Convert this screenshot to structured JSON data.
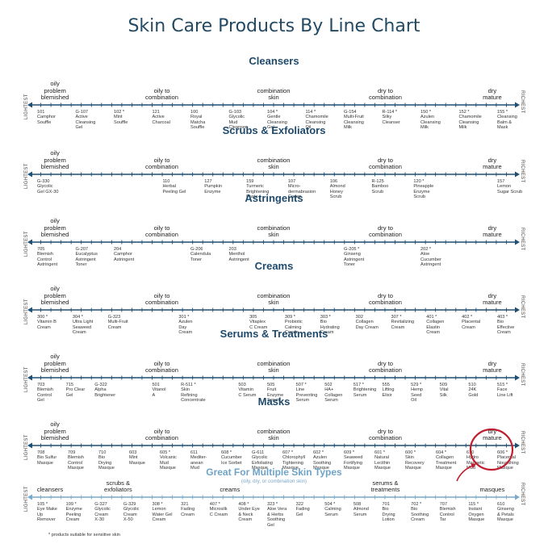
{
  "title": "Skin Care Products By Line Chart",
  "axis_left": "LIGHTEST",
  "axis_right": "RICHEST",
  "sections": [
    {
      "title": "Cleansers",
      "zones": [
        {
          "text": "oily\nproblem\nblemished",
          "pos": 0.05
        },
        {
          "text": "oily to\ncombination",
          "pos": 0.27
        },
        {
          "text": "combination\nskin",
          "pos": 0.5
        },
        {
          "text": "dry to\ncombination",
          "pos": 0.73
        },
        {
          "text": "dry\nmature",
          "pos": 0.95
        }
      ],
      "products": [
        {
          "text": "101\nCamphor\nSouffle"
        },
        {
          "text": "G-107\nActive\nCleansing\nGel"
        },
        {
          "text": "102 *\nMint\nSouffle"
        },
        {
          "text": "121\nActive\nCharcoal"
        },
        {
          "text": "100\nRoyal\nMatcha\nSouffle"
        },
        {
          "text": "G-103\nGlycolic\nMud\nCleanser"
        },
        {
          "text": "104 *\nGentle\nCleansing\nGel"
        },
        {
          "text": "114 *\nChamomile\nCleansing\nOil"
        },
        {
          "text": "G-154\nMulti-Fruit\nCleansing\nMilk"
        },
        {
          "text": "R-114 *\nSilky\nCleanser"
        },
        {
          "text": "150 *\nAzulen\nCleansing\nMilk"
        },
        {
          "text": "152 *\nChamomile\nCleansing\nMilk"
        },
        {
          "text": "155 *\nCleansing\nBalm &\nMask"
        }
      ]
    },
    {
      "title": "Scrubs & Exfoliators",
      "zones": [
        {
          "text": "oily\nproblem\nblemished",
          "pos": 0.05
        },
        {
          "text": "oily to\ncombination",
          "pos": 0.27
        },
        {
          "text": "combination\nskin",
          "pos": 0.5
        },
        {
          "text": "dry to\ncombination",
          "pos": 0.73
        },
        {
          "text": "dry\nmature",
          "pos": 0.95
        }
      ],
      "products": [
        {
          "text": "G-330\nGlycolic\nGel GX-30"
        },
        {
          "text": ""
        },
        {
          "text": ""
        },
        {
          "text": "110\nHerbal\nPeeling Gel"
        },
        {
          "text": "127\nPumpkin\nEnzyme"
        },
        {
          "text": "159\nTurmeric\nBrightening\nPaste"
        },
        {
          "text": "107\nMicro-\ndermabrasion\nCream"
        },
        {
          "text": "106\nAlmond\nHoney\nScrub"
        },
        {
          "text": "R-125\nBamboo\nScrub"
        },
        {
          "text": "120 *\nPineapple\nEnzyme\nScrub"
        },
        {
          "text": ""
        },
        {
          "text": "157\nLemon\nSugar Scrub"
        }
      ]
    },
    {
      "title": "Astringents",
      "zones": [
        {
          "text": "oily\nproblem\nblemished",
          "pos": 0.05
        },
        {
          "text": "oily to\ncombination",
          "pos": 0.27
        },
        {
          "text": "combination\nskin",
          "pos": 0.5
        },
        {
          "text": "dry to\ncombination",
          "pos": 0.73
        },
        {
          "text": "dry\nmature",
          "pos": 0.95
        }
      ],
      "products": [
        {
          "text": "705\nBlemish\nControl\nAstringent"
        },
        {
          "text": "G-207\nEucalyptus\nAstringent\nToner"
        },
        {
          "text": "204\nCamphor\nAstringent"
        },
        {
          "text": ""
        },
        {
          "text": "G-206\nCalendula\nToner"
        },
        {
          "text": "203\nMenthol\nAstringent"
        },
        {
          "text": ""
        },
        {
          "text": ""
        },
        {
          "text": "G-205 *\nGinseng\nAstringent\nToner"
        },
        {
          "text": ""
        },
        {
          "text": "202 *\nAloe\nCucumber\nAstringent"
        },
        {
          "text": ""
        },
        {
          "text": ""
        }
      ]
    },
    {
      "title": "Creams",
      "zones": [
        {
          "text": "oily\nproblem\nblemished",
          "pos": 0.05
        },
        {
          "text": "oily to\ncombination",
          "pos": 0.27
        },
        {
          "text": "combination\nskin",
          "pos": 0.5
        },
        {
          "text": "dry to\ncombination",
          "pos": 0.73
        },
        {
          "text": "dry\nmature",
          "pos": 0.95
        }
      ],
      "products": [
        {
          "text": "300 *\nVitamin B\nCream"
        },
        {
          "text": "304 *\nUltra Light\nSeaweed\nCream"
        },
        {
          "text": "G-323\nMulti-Fruit\nCream"
        },
        {
          "text": ""
        },
        {
          "text": "301 *\nAzulen\nDay\nCream"
        },
        {
          "text": ""
        },
        {
          "text": "305\nVitaplex\nC Cream"
        },
        {
          "text": "309 *\nProbiotic\nCalming\nCream"
        },
        {
          "text": "303 *\nBio\nHydrating\nCream"
        },
        {
          "text": "302\nCollagen\nDay Cream"
        },
        {
          "text": "307 *\nRevitalizing\nCream"
        },
        {
          "text": "401 *\nCollagen\nElastin\nCream"
        },
        {
          "text": "402 *\nPlacental\nCream"
        },
        {
          "text": "403 *\nBio\nEffective\nCream"
        }
      ]
    },
    {
      "title": "Serums & Treatments",
      "zones": [
        {
          "text": "oily\nproblem\nblemished",
          "pos": 0.05
        },
        {
          "text": "oily to\ncombination",
          "pos": 0.27
        },
        {
          "text": "combination\nskin",
          "pos": 0.5
        },
        {
          "text": "dry to\ncombination",
          "pos": 0.73
        },
        {
          "text": "dry\nmature",
          "pos": 0.95
        }
      ],
      "products": [
        {
          "text": "703\nBlemish\nControl\nGel"
        },
        {
          "text": "715\nPro Clear\nGel"
        },
        {
          "text": "G-322\nAlpha\nBrightener"
        },
        {
          "text": ""
        },
        {
          "text": "501\nVitanol\nA"
        },
        {
          "text": "R-511 *\nSkin\nRefining\nConcentrate"
        },
        {
          "text": ""
        },
        {
          "text": "503\nVitamin\nC Serum"
        },
        {
          "text": "505\nFruit\nEnzyme\nSerum"
        },
        {
          "text": "507 *\nLine\nPreventing\nSerum"
        },
        {
          "text": "502\nHA+\nCollagen\nSerum"
        },
        {
          "text": "517 *\nBrightening\nSerum"
        },
        {
          "text": "555\nLifting\nElixir"
        },
        {
          "text": "529 *\nHemp\nSeed\nOil"
        },
        {
          "text": "509\nVital\nSilk"
        },
        {
          "text": "510\n24K\nGold"
        },
        {
          "text": "515 *\nFace\nLine Lift"
        }
      ]
    },
    {
      "title": "Masks",
      "zones": [
        {
          "text": "oily\nproblem\nblemished",
          "pos": 0.05
        },
        {
          "text": "oily to\ncombination",
          "pos": 0.27
        },
        {
          "text": "combination\nskin",
          "pos": 0.5
        },
        {
          "text": "dry to\ncombination",
          "pos": 0.73
        },
        {
          "text": "dry\nmature",
          "pos": 0.95
        }
      ],
      "products": [
        {
          "text": "708\nBio Sulfur\nMasque"
        },
        {
          "text": "709\nBlemish\nControl\nMasque"
        },
        {
          "text": "710\nBio\nDrying\nMasque"
        },
        {
          "text": "603\nMint\nMasque"
        },
        {
          "text": "605 *\nVolcanic\nMud\nMasque"
        },
        {
          "text": "611\nMediter-\nanean\nMud"
        },
        {
          "text": "608 *\nCucumber\nIce Sorbet"
        },
        {
          "text": "G-611\nGlycolic\nExfoliating\nMasque"
        },
        {
          "text": "607 *\nChlorophyll\nTightening\nMasque"
        },
        {
          "text": "602 *\nAzulen\nSoothing\nMasque"
        },
        {
          "text": "609 *\nSeaweed\nFortifying\nMasque"
        },
        {
          "text": "601 *\nNatural\nLecithin\nMasque"
        },
        {
          "text": "600 *\nSkin\nRecovery\nMasque"
        },
        {
          "text": "604 *\nCollagen\nTreatment\nMasque"
        },
        {
          "text": "610\nHydro\nMagnetic\nMud"
        },
        {
          "text": "606 *\nPlacental\nNourishing\nMasque"
        }
      ]
    }
  ],
  "multi": {
    "title": "Great For Multiple Skin Types",
    "subtitle": "(oily, dry, or combination skin)",
    "zones": [
      {
        "text": "cleansers",
        "pos": 0.04
      },
      {
        "text": "scrubs &\nexfoliators",
        "pos": 0.18
      },
      {
        "text": "creams",
        "pos": 0.41
      },
      {
        "text": "serums &\ntreatments",
        "pos": 0.73
      },
      {
        "text": "masques",
        "pos": 0.95
      }
    ],
    "products": [
      {
        "text": "105 *\nEye Make\nUp\nRemover"
      },
      {
        "text": "109 *\nEnzyme\nPeeling\nCream"
      },
      {
        "text": "G-327\nGlycolic\nCream\nX-30"
      },
      {
        "text": "G-329\nGlycolic\nCream\nX-50"
      },
      {
        "text": "308 *\nLemon\nWater Gel\nCream"
      },
      {
        "text": "321\nFading\nCream"
      },
      {
        "text": "407 *\nMicrosilk\nC Cream"
      },
      {
        "text": "408 *\nUnder Eye\n& Neck\nCream"
      },
      {
        "text": "323 *\nAloe Vera\n& Herbs\nSoothing\nGel"
      },
      {
        "text": "322\nFading\nGel"
      },
      {
        "text": "504 *\nCalming\nSerum"
      },
      {
        "text": "508\nAlmond\nSerum"
      },
      {
        "text": "701\nBio\nDrying\nLotion"
      },
      {
        "text": "702 *\nBio\nSoothing\nCream"
      },
      {
        "text": "707\nBlemish\nControl\nTar"
      },
      {
        "text": "115 *\nInstant\nOxygen\nMasque"
      },
      {
        "text": "610\nGinseng\n& Petals\nMasque"
      }
    ]
  },
  "footnote": "* products suitable for sensitive skin",
  "colors": {
    "title": "#244a63",
    "axis_dark": "#1f4f73",
    "axis_light": "#79a9c9",
    "highlight": "#c01e2e"
  }
}
